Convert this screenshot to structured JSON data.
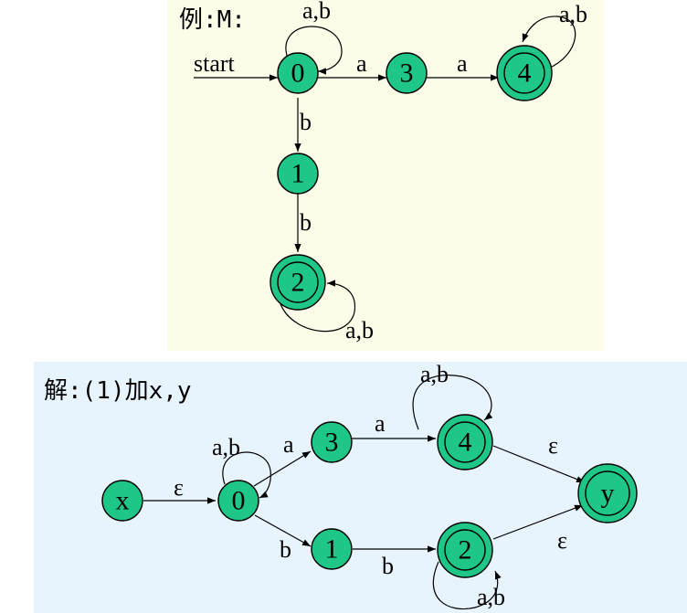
{
  "top": {
    "heading": "例:M:",
    "start_label": "start",
    "nodes": {
      "n0": "0",
      "n1": "1",
      "n2": "2",
      "n3": "3",
      "n4": "4"
    },
    "edges": {
      "loop0": "a,b",
      "e03": "a",
      "e34": "a",
      "loop4": "a,b",
      "e01": "b",
      "e12": "b",
      "loop2": "a,b"
    }
  },
  "bottom": {
    "heading": "解:(1)加x,y",
    "nodes": {
      "nx": "x",
      "n0": "0",
      "n1": "1",
      "n2": "2",
      "n3": "3",
      "n4": "4",
      "ny": "y"
    },
    "edges": {
      "ex0": "ε",
      "loop0": "a,b",
      "e03": "a",
      "e34": "a",
      "loop4": "a,b",
      "e4y": "ε",
      "e01": "b",
      "e12": "b",
      "loop2": "a,b",
      "e2y": "ε"
    }
  }
}
